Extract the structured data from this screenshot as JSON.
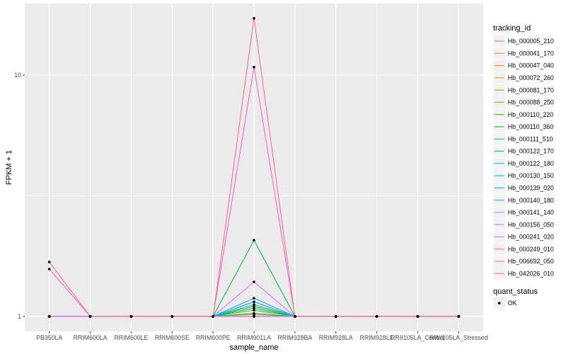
{
  "chart_data": {
    "type": "line",
    "xlabel": "sample_name",
    "ylabel": "FPKM + 1",
    "y_scale": "log10",
    "ylim": [
      0.867,
      19.8
    ],
    "y_ticks": [
      1,
      10
    ],
    "grid": true,
    "legend_position": "right",
    "colors": {
      "panel": "#EBEBEB",
      "grid": "#FFFFFF",
      "tick": "#333333",
      "axis_text": "#4D4D4D",
      "legend_key": "#F2F2F2"
    },
    "categories": [
      "PB350LA",
      "RRIM600LA",
      "RRIM600LE",
      "RRIM600SE",
      "RRIM600PE",
      "RRIM901LA",
      "RRIM928BA",
      "RRIM928LA",
      "RRIM928LE",
      "RRII105LA_Control",
      "RRII105LA_Stressed"
    ],
    "color_legend": {
      "title": "tracking_id"
    },
    "series": [
      {
        "name": "Hb_000005_210",
        "color": "#F8766D",
        "values": [
          1,
          1,
          1,
          1,
          1,
          1,
          1,
          1,
          1,
          1,
          1
        ]
      },
      {
        "name": "Hb_000041_170",
        "color": "#EA8331",
        "values": [
          1,
          1,
          1,
          1,
          1,
          1,
          1,
          1,
          1,
          1,
          1
        ]
      },
      {
        "name": "Hb_000047_040",
        "color": "#D89000",
        "values": [
          1,
          1,
          1,
          1,
          1,
          1,
          1,
          1,
          1,
          1,
          1
        ]
      },
      {
        "name": "Hb_000072_260",
        "color": "#C09B00",
        "values": [
          1,
          1,
          1,
          1,
          1,
          1,
          1,
          1,
          1,
          1,
          1
        ]
      },
      {
        "name": "Hb_000081_170",
        "color": "#A3A500",
        "values": [
          1,
          1,
          1,
          1,
          1,
          1.02,
          1,
          1,
          1,
          1,
          1
        ]
      },
      {
        "name": "Hb_000088_250",
        "color": "#7CAE00",
        "values": [
          1,
          1,
          1,
          1,
          1,
          1.06,
          1,
          1,
          1,
          1,
          1
        ]
      },
      {
        "name": "Hb_000110_220",
        "color": "#39B600",
        "values": [
          1,
          1,
          1,
          1,
          1,
          1.1,
          1,
          1,
          1,
          1,
          1
        ]
      },
      {
        "name": "Hb_000110_360",
        "color": "#00BB4E",
        "values": [
          1,
          1,
          1,
          1,
          1,
          2.07,
          1,
          1,
          1,
          1,
          1
        ]
      },
      {
        "name": "Hb_000111_510",
        "color": "#00BF7D",
        "values": [
          1,
          1,
          1,
          1,
          1,
          1.08,
          1,
          1,
          1,
          1,
          1
        ]
      },
      {
        "name": "Hb_000122_170",
        "color": "#00C1A3",
        "values": [
          1,
          1,
          1,
          1,
          1,
          1.03,
          1,
          1,
          1,
          1,
          1
        ]
      },
      {
        "name": "Hb_000122_180",
        "color": "#00BFC4",
        "values": [
          1,
          1,
          1,
          1,
          1,
          1.12,
          1,
          1,
          1,
          1,
          1
        ]
      },
      {
        "name": "Hb_000130_150",
        "color": "#00BAE0",
        "values": [
          1,
          1,
          1,
          1,
          1,
          1,
          1,
          1,
          1,
          1,
          1
        ]
      },
      {
        "name": "Hb_000139_020",
        "color": "#00B0F6",
        "values": [
          1,
          1,
          1,
          1,
          1,
          1.15,
          1,
          1,
          1,
          1,
          1
        ]
      },
      {
        "name": "Hb_000140_180",
        "color": "#35A2FF",
        "values": [
          1,
          1,
          1,
          1,
          1,
          1.19,
          1,
          1,
          1,
          1,
          1
        ]
      },
      {
        "name": "Hb_000141_140",
        "color": "#9590FF",
        "values": [
          1,
          1,
          1,
          1,
          1,
          1,
          1,
          1,
          1,
          1,
          1
        ]
      },
      {
        "name": "Hb_000156_050",
        "color": "#C77CFF",
        "values": [
          1,
          1,
          1,
          1,
          1,
          1,
          1,
          1,
          1,
          1,
          1
        ]
      },
      {
        "name": "Hb_000241_020",
        "color": "#E76BF3",
        "values": [
          1,
          1,
          1,
          1,
          1,
          1.39,
          1,
          1,
          1,
          1,
          1
        ]
      },
      {
        "name": "Hb_000249_010",
        "color": "#FA62DB",
        "values": [
          1,
          1,
          1,
          1,
          1,
          1,
          1,
          1,
          1,
          1,
          1
        ]
      },
      {
        "name": "Hb_006692_050",
        "color": "#FF62BC",
        "values": [
          1.57,
          1,
          1,
          1,
          1,
          10.8,
          1,
          1,
          1,
          1,
          1
        ]
      },
      {
        "name": "Hb_042026_010",
        "color": "#FF6C91",
        "values": [
          1.68,
          1,
          1,
          1,
          1,
          17.2,
          1,
          1,
          1,
          1,
          1
        ]
      }
    ],
    "shape_legend": {
      "title": "quant_status",
      "entries": [
        {
          "label": "OK",
          "color": "#000000",
          "shape": "circle"
        }
      ]
    }
  }
}
